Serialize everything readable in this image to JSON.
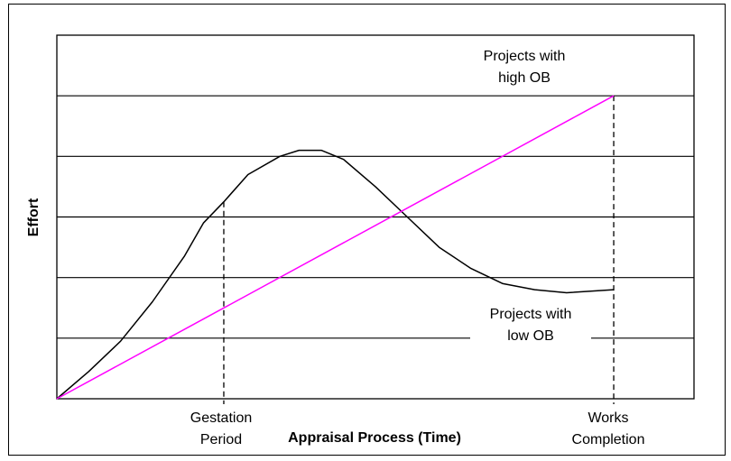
{
  "chart_data": {
    "type": "line",
    "title": "",
    "xlabel": "Appraisal Process (Time)",
    "ylabel": "Effort",
    "grid": true,
    "gridlines_y": 6,
    "xlim": [
      0,
      1
    ],
    "ylim": [
      0,
      6
    ],
    "x_markers": [
      {
        "name": "Gestation Period",
        "lines": [
          "Gestation",
          "Period"
        ],
        "x": 0.262
      },
      {
        "name": "Works Completion",
        "lines": [
          "Works",
          "Completion"
        ],
        "x": 0.874
      }
    ],
    "series": [
      {
        "name": "Projects with high OB",
        "label_lines": [
          "Projects with",
          "high OB"
        ],
        "color": "#ff00ff",
        "x": [
          0,
          0.874
        ],
        "y": [
          0,
          5.0
        ]
      },
      {
        "name": "Projects with low OB",
        "label_lines": [
          "Projects with",
          "low OB"
        ],
        "color": "#000000",
        "x": [
          0,
          0.05,
          0.1,
          0.15,
          0.2,
          0.23,
          0.262,
          0.3,
          0.35,
          0.38,
          0.415,
          0.45,
          0.5,
          0.55,
          0.6,
          0.65,
          0.7,
          0.75,
          0.8,
          0.874
        ],
        "y": [
          0,
          0.45,
          0.95,
          1.6,
          2.35,
          2.9,
          3.25,
          3.7,
          4.0,
          4.1,
          4.1,
          3.95,
          3.5,
          3.0,
          2.5,
          2.15,
          1.9,
          1.8,
          1.75,
          1.8
        ]
      }
    ]
  }
}
